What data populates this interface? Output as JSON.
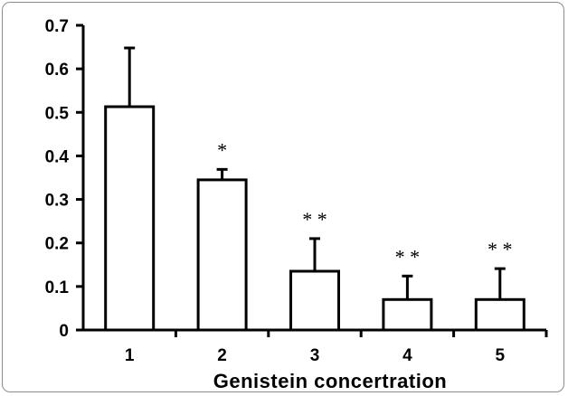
{
  "chart_data": {
    "type": "bar",
    "title": "",
    "xlabel": "Genistein concertration",
    "ylabel": "",
    "categories": [
      "1",
      "2",
      "3",
      "4",
      "5"
    ],
    "values": [
      0.513,
      0.345,
      0.135,
      0.07,
      0.07
    ],
    "error_upper": [
      0.648,
      0.369,
      0.21,
      0.124,
      0.141
    ],
    "significance": [
      "",
      "*",
      "**",
      "**",
      "**"
    ],
    "ylim": [
      0,
      0.7
    ],
    "yticks": [
      "0",
      "0.1",
      "0.2",
      "0.3",
      "0.4",
      "0.5",
      "0.6",
      "0.7"
    ],
    "grid": false,
    "bar_fill": "#ffffff",
    "bar_stroke": "#000000"
  }
}
